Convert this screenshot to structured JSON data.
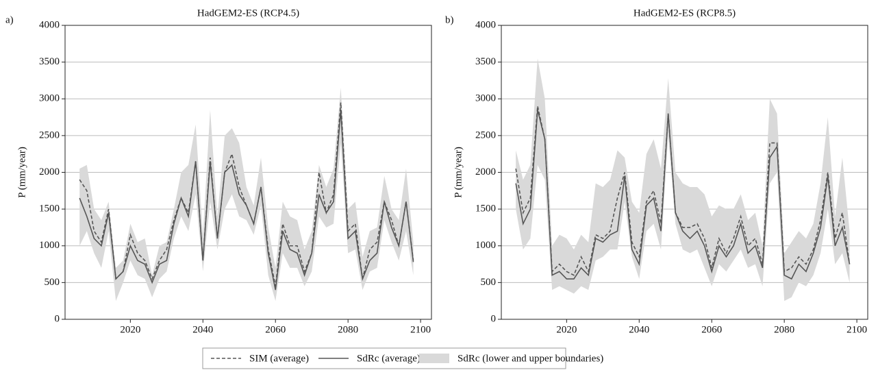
{
  "chart_data": [
    {
      "type": "line",
      "panel_label": "a)",
      "title": "HadGEM2-ES (RCP4.5)",
      "ylabel": "P (mm/year)",
      "x": [
        2006,
        2008,
        2010,
        2012,
        2014,
        2016,
        2018,
        2020,
        2022,
        2024,
        2026,
        2028,
        2030,
        2032,
        2034,
        2036,
        2038,
        2040,
        2042,
        2044,
        2046,
        2048,
        2050,
        2052,
        2054,
        2056,
        2058,
        2060,
        2062,
        2064,
        2066,
        2068,
        2070,
        2072,
        2074,
        2076,
        2078,
        2080,
        2082,
        2084,
        2086,
        2088,
        2090,
        2092,
        2094,
        2096,
        2098
      ],
      "xlim": [
        2002,
        2103
      ],
      "xticks": [
        2020,
        2040,
        2060,
        2080,
        2100
      ],
      "ylim": [
        0,
        4000
      ],
      "yticks": [
        0,
        500,
        1000,
        1500,
        2000,
        2500,
        3000,
        3500,
        4000
      ],
      "grid": true,
      "series": [
        {
          "name": "SdRc (lower and upper boundaries)",
          "color": "#d9d9d9",
          "lower": [
            1000,
            1200,
            900,
            700,
            1200,
            250,
            500,
            800,
            600,
            550,
            300,
            550,
            650,
            1100,
            1400,
            1200,
            1700,
            650,
            1600,
            950,
            1500,
            1700,
            1400,
            1350,
            1150,
            1550,
            600,
            250,
            900,
            700,
            700,
            450,
            650,
            1400,
            1250,
            1300,
            2400,
            900,
            950,
            400,
            650,
            700,
            1350,
            1050,
            800,
            1200,
            600
          ],
          "upper": [
            2050,
            2100,
            1500,
            1350,
            1600,
            700,
            800,
            1300,
            1050,
            1100,
            600,
            1000,
            1050,
            1500,
            2000,
            2100,
            2650,
            1150,
            2850,
            1400,
            2500,
            2600,
            2400,
            1800,
            1550,
            2200,
            1250,
            700,
            1600,
            1400,
            1350,
            950,
            1200,
            2100,
            1800,
            2050,
            3150,
            1500,
            1600,
            850,
            1200,
            1250,
            1950,
            1500,
            1350,
            2050,
            1050
          ]
        },
        {
          "name": "SIM (average)",
          "color": "#555555",
          "dashed": true,
          "values": [
            1900,
            1750,
            1200,
            1050,
            1500,
            550,
            650,
            1150,
            900,
            800,
            550,
            800,
            950,
            1350,
            1650,
            1450,
            2150,
            800,
            2200,
            1100,
            2000,
            2250,
            1800,
            1550,
            1300,
            1800,
            950,
            450,
            1300,
            1000,
            1000,
            650,
            900,
            2000,
            1450,
            1700,
            2950,
            1200,
            1300,
            550,
            950,
            1050,
            1600,
            1350,
            1000,
            1600,
            800
          ]
        },
        {
          "name": "SdRc (average)",
          "color": "#555555",
          "dashed": false,
          "values": [
            1650,
            1400,
            1100,
            1000,
            1450,
            550,
            650,
            1000,
            800,
            750,
            500,
            750,
            800,
            1300,
            1650,
            1400,
            2150,
            800,
            2150,
            1100,
            2000,
            2100,
            1700,
            1550,
            1300,
            1800,
            900,
            400,
            1200,
            950,
            900,
            600,
            900,
            1700,
            1450,
            1600,
            2850,
            1100,
            1200,
            550,
            800,
            900,
            1600,
            1250,
            1000,
            1600,
            780
          ]
        }
      ]
    },
    {
      "type": "line",
      "panel_label": "b)",
      "title": "HadGEM2-ES (RCP8.5)",
      "ylabel": "P (mm/year)",
      "x": [
        2006,
        2008,
        2010,
        2012,
        2014,
        2016,
        2018,
        2020,
        2022,
        2024,
        2026,
        2028,
        2030,
        2032,
        2034,
        2036,
        2038,
        2040,
        2042,
        2044,
        2046,
        2048,
        2050,
        2052,
        2054,
        2056,
        2058,
        2060,
        2062,
        2064,
        2066,
        2068,
        2070,
        2072,
        2074,
        2076,
        2078,
        2080,
        2082,
        2084,
        2086,
        2088,
        2090,
        2092,
        2094,
        2096,
        2098
      ],
      "xlim": [
        2002,
        2103
      ],
      "xticks": [
        2020,
        2040,
        2060,
        2080,
        2100
      ],
      "ylim": [
        0,
        4000
      ],
      "yticks": [
        0,
        500,
        1000,
        1500,
        2000,
        2500,
        3000,
        3500,
        4000
      ],
      "grid": true,
      "series": [
        {
          "color": "#d9d9d9",
          "lower": [
            1500,
            950,
            1100,
            2100,
            1900,
            400,
            450,
            400,
            350,
            450,
            400,
            800,
            850,
            950,
            950,
            1600,
            850,
            550,
            1200,
            1300,
            950,
            2500,
            1300,
            950,
            900,
            950,
            700,
            450,
            750,
            650,
            800,
            950,
            700,
            750,
            450,
            1850,
            2000,
            250,
            300,
            500,
            450,
            600,
            900,
            1500,
            750,
            900,
            500
          ],
          "upper": [
            2300,
            1900,
            2100,
            3550,
            3000,
            1000,
            1150,
            1100,
            950,
            1150,
            1050,
            1850,
            1800,
            1900,
            2300,
            2200,
            1600,
            1450,
            2250,
            2450,
            2050,
            3280,
            2000,
            1850,
            1800,
            1800,
            1700,
            1400,
            1550,
            1500,
            1500,
            1700,
            1350,
            1450,
            1000,
            3000,
            2800,
            900,
            1050,
            1200,
            1100,
            1300,
            1850,
            2750,
            1400,
            2200,
            1200
          ]
        },
        {
          "color": "#555555",
          "dashed": true,
          "values": [
            2050,
            1450,
            1650,
            2900,
            2450,
            650,
            750,
            650,
            600,
            850,
            650,
            1150,
            1100,
            1200,
            1650,
            2000,
            1050,
            850,
            1600,
            1750,
            1300,
            2800,
            1450,
            1250,
            1250,
            1300,
            1100,
            700,
            1100,
            900,
            1100,
            1400,
            1000,
            1100,
            750,
            2400,
            2400,
            650,
            700,
            850,
            750,
            950,
            1350,
            2000,
            1100,
            1450,
            750
          ]
        },
        {
          "color": "#555555",
          "dashed": false,
          "values": [
            1850,
            1300,
            1500,
            2850,
            2450,
            600,
            650,
            550,
            550,
            700,
            600,
            1100,
            1050,
            1150,
            1200,
            1950,
            950,
            750,
            1550,
            1650,
            1200,
            2800,
            1450,
            1200,
            1100,
            1200,
            1000,
            650,
            1000,
            850,
            1000,
            1300,
            900,
            1000,
            700,
            2200,
            2350,
            600,
            550,
            750,
            650,
            900,
            1250,
            1950,
            1000,
            1250,
            750
          ]
        }
      ]
    }
  ]
}
